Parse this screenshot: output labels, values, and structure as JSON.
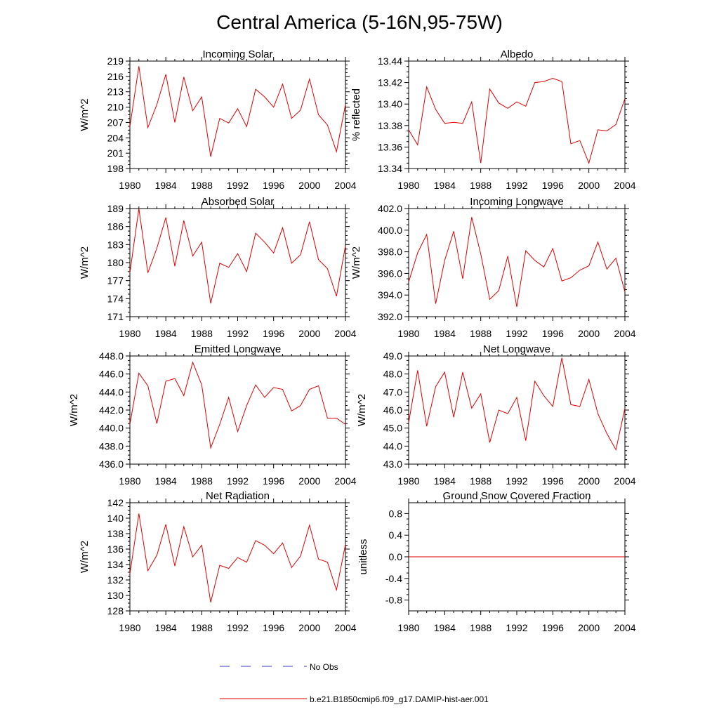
{
  "figure": {
    "title": "Central America (5-16N,95-75W)",
    "legend": [
      {
        "label": "No Obs",
        "color": "#3a3ad0",
        "dash": true
      },
      {
        "label": "b.e21.B1850cmip6.f09_g17.DAMIP-hist-aer.001",
        "color": "#e00000",
        "dash": false
      }
    ]
  },
  "chart_data": [
    {
      "type": "line",
      "title": "Incoming Solar",
      "ylabel": "W/m^2",
      "xlim": [
        1980,
        2004
      ],
      "ylim": [
        198,
        219
      ],
      "yticks": [
        "198",
        "201",
        "204",
        "207",
        "210",
        "213",
        "216",
        "219"
      ],
      "xticks": [
        "1980",
        "1984",
        "1988",
        "1992",
        "1996",
        "2000",
        "2004"
      ],
      "x": [
        1980,
        1981,
        1982,
        1983,
        1984,
        1985,
        1986,
        1987,
        1988,
        1989,
        1990,
        1991,
        1992,
        1993,
        1994,
        1995,
        1996,
        1997,
        1998,
        1999,
        2000,
        2001,
        2002,
        2003,
        2004
      ],
      "series": [
        {
          "color": "#e00000",
          "values": [
            206.2,
            218.0,
            206.0,
            210.5,
            216.4,
            207.0,
            215.9,
            209.3,
            212.0,
            200.3,
            207.8,
            206.9,
            209.7,
            206.2,
            213.5,
            212.0,
            210.0,
            214.5,
            207.8,
            209.4,
            215.5,
            208.5,
            206.5,
            201.3,
            210.5
          ]
        }
      ]
    },
    {
      "type": "line",
      "title": "Albedo",
      "ylabel": "% reflected",
      "xlim": [
        1980,
        2004
      ],
      "ylim": [
        13.34,
        13.44
      ],
      "yticks": [
        "13.34",
        "13.36",
        "13.38",
        "13.40",
        "13.42",
        "13.44"
      ],
      "xticks": [
        "1980",
        "1984",
        "1988",
        "1992",
        "1996",
        "2000",
        "2004"
      ],
      "x": [
        1980,
        1981,
        1982,
        1983,
        1984,
        1985,
        1986,
        1987,
        1988,
        1989,
        1990,
        1991,
        1992,
        1993,
        1994,
        1995,
        1996,
        1997,
        1998,
        1999,
        2000,
        2001,
        2002,
        2003,
        2004
      ],
      "series": [
        {
          "color": "#e00000",
          "values": [
            13.376,
            13.362,
            13.416,
            13.395,
            13.382,
            13.383,
            13.382,
            13.402,
            13.345,
            13.414,
            13.401,
            13.396,
            13.402,
            13.398,
            13.42,
            13.421,
            13.424,
            13.421,
            13.363,
            13.366,
            13.345,
            13.376,
            13.375,
            13.381,
            13.405
          ]
        }
      ]
    },
    {
      "type": "line",
      "title": "Absorbed Solar",
      "ylabel": "W/m^2",
      "xlim": [
        1980,
        2004
      ],
      "ylim": [
        171,
        189
      ],
      "yticks": [
        "171",
        "174",
        "177",
        "180",
        "183",
        "186",
        "189"
      ],
      "xticks": [
        "1980",
        "1984",
        "1988",
        "1992",
        "1996",
        "2000",
        "2004"
      ],
      "x": [
        1980,
        1981,
        1982,
        1983,
        1984,
        1985,
        1986,
        1987,
        1988,
        1989,
        1990,
        1991,
        1992,
        1993,
        1994,
        1995,
        1996,
        1997,
        1998,
        1999,
        2000,
        2001,
        2002,
        2003,
        2004
      ],
      "series": [
        {
          "color": "#e00000",
          "values": [
            178.3,
            189.0,
            178.3,
            182.4,
            187.5,
            179.4,
            187.0,
            181.1,
            183.4,
            173.2,
            179.9,
            179.2,
            181.5,
            178.5,
            184.9,
            183.4,
            181.6,
            185.8,
            179.9,
            181.3,
            186.8,
            180.5,
            179.0,
            174.4,
            182.8
          ]
        }
      ]
    },
    {
      "type": "line",
      "title": "Incoming Longwave",
      "ylabel": "W/m^2",
      "xlim": [
        1980,
        2004
      ],
      "ylim": [
        392.0,
        402.0
      ],
      "yticks": [
        "392.0",
        "394.0",
        "396.0",
        "398.0",
        "400.0",
        "402.0"
      ],
      "xticks": [
        "1980",
        "1984",
        "1988",
        "1992",
        "1996",
        "2000",
        "2004"
      ],
      "x": [
        1980,
        1981,
        1982,
        1983,
        1984,
        1985,
        1986,
        1987,
        1988,
        1989,
        1990,
        1991,
        1992,
        1993,
        1994,
        1995,
        1996,
        1997,
        1998,
        1999,
        2000,
        2001,
        2002,
        2003,
        2004
      ],
      "series": [
        {
          "color": "#e00000",
          "values": [
            395.2,
            397.9,
            399.6,
            393.2,
            397.2,
            399.9,
            395.5,
            401.2,
            397.8,
            393.6,
            394.4,
            397.6,
            392.9,
            398.1,
            397.2,
            396.6,
            398.3,
            395.3,
            395.6,
            396.3,
            396.7,
            398.9,
            396.4,
            397.4,
            394.3
          ]
        }
      ]
    },
    {
      "type": "line",
      "title": "Emitted Longwave",
      "ylabel": "W/m^2",
      "xlim": [
        1980,
        2004
      ],
      "ylim": [
        436.0,
        448.0
      ],
      "yticks": [
        "436.0",
        "438.0",
        "440.0",
        "442.0",
        "444.0",
        "446.0",
        "448.0"
      ],
      "xticks": [
        "1980",
        "1984",
        "1988",
        "1992",
        "1996",
        "2000",
        "2004"
      ],
      "x": [
        1980,
        1981,
        1982,
        1983,
        1984,
        1985,
        1986,
        1987,
        1988,
        1989,
        1990,
        1991,
        1992,
        1993,
        1994,
        1995,
        1996,
        1997,
        1998,
        1999,
        2000,
        2001,
        2002,
        2003,
        2004
      ],
      "series": [
        {
          "color": "#e00000",
          "values": [
            440.4,
            446.1,
            444.7,
            440.5,
            445.2,
            445.5,
            443.6,
            447.3,
            444.8,
            437.8,
            440.4,
            443.4,
            439.6,
            442.5,
            444.8,
            443.4,
            444.5,
            444.3,
            441.9,
            442.5,
            444.3,
            444.7,
            441.1,
            441.1,
            440.4
          ]
        }
      ]
    },
    {
      "type": "line",
      "title": "Net Longwave",
      "ylabel": "W/m^2",
      "xlim": [
        1980,
        2004
      ],
      "ylim": [
        43.0,
        49.0
      ],
      "yticks": [
        "43.0",
        "44.0",
        "45.0",
        "46.0",
        "47.0",
        "48.0",
        "49.0"
      ],
      "xticks": [
        "1980",
        "1984",
        "1988",
        "1992",
        "1996",
        "2000",
        "2004"
      ],
      "x": [
        1980,
        1981,
        1982,
        1983,
        1984,
        1985,
        1986,
        1987,
        1988,
        1989,
        1990,
        1991,
        1992,
        1993,
        1994,
        1995,
        1996,
        1997,
        1998,
        1999,
        2000,
        2001,
        2002,
        2003,
        2004
      ],
      "series": [
        {
          "color": "#e00000",
          "values": [
            45.3,
            48.2,
            45.1,
            47.3,
            48.1,
            45.6,
            48.1,
            46.1,
            46.9,
            44.2,
            46.0,
            45.8,
            46.7,
            44.3,
            47.6,
            46.8,
            46.2,
            48.9,
            46.3,
            46.2,
            47.7,
            45.8,
            44.7,
            43.8,
            46.1
          ]
        }
      ]
    },
    {
      "type": "line",
      "title": "Net Radiation",
      "ylabel": "W/m^2",
      "xlim": [
        1980,
        2004
      ],
      "ylim": [
        128,
        142
      ],
      "yticks": [
        "128",
        "130",
        "132",
        "134",
        "136",
        "138",
        "140",
        "142"
      ],
      "xticks": [
        "1980",
        "1984",
        "1988",
        "1992",
        "1996",
        "2000",
        "2004"
      ],
      "x": [
        1980,
        1981,
        1982,
        1983,
        1984,
        1985,
        1986,
        1987,
        1988,
        1989,
        1990,
        1991,
        1992,
        1993,
        1994,
        1995,
        1996,
        1997,
        1998,
        1999,
        2000,
        2001,
        2002,
        2003,
        2004
      ],
      "series": [
        {
          "color": "#e00000",
          "values": [
            132.8,
            140.6,
            133.2,
            135.2,
            139.2,
            133.8,
            138.9,
            135.0,
            136.5,
            129.1,
            133.9,
            133.5,
            134.9,
            134.3,
            137.1,
            136.5,
            135.4,
            136.8,
            133.6,
            135.1,
            139.1,
            134.7,
            134.3,
            130.7,
            136.6
          ]
        }
      ]
    },
    {
      "type": "line",
      "title": "Ground Snow Covered Fraction",
      "ylabel": "unitless",
      "xlim": [
        1980,
        2004
      ],
      "ylim": [
        -1.0,
        1.0
      ],
      "yticks": [
        "-0.8",
        "-0.4",
        "0.0",
        "0.4",
        "0.8"
      ],
      "yticks_values": [
        -0.8,
        -0.4,
        0.0,
        0.4,
        0.8
      ],
      "xticks": [
        "1980",
        "1984",
        "1988",
        "1992",
        "1996",
        "2000",
        "2004"
      ],
      "x": [
        1980,
        1981,
        1982,
        1983,
        1984,
        1985,
        1986,
        1987,
        1988,
        1989,
        1990,
        1991,
        1992,
        1993,
        1994,
        1995,
        1996,
        1997,
        1998,
        1999,
        2000,
        2001,
        2002,
        2003,
        2004
      ],
      "series": [
        {
          "color": "#e00000",
          "values": [
            0,
            0,
            0,
            0,
            0,
            0,
            0,
            0,
            0,
            0,
            0,
            0,
            0,
            0,
            0,
            0,
            0,
            0,
            0,
            0,
            0,
            0,
            0,
            0,
            0
          ]
        }
      ]
    }
  ]
}
